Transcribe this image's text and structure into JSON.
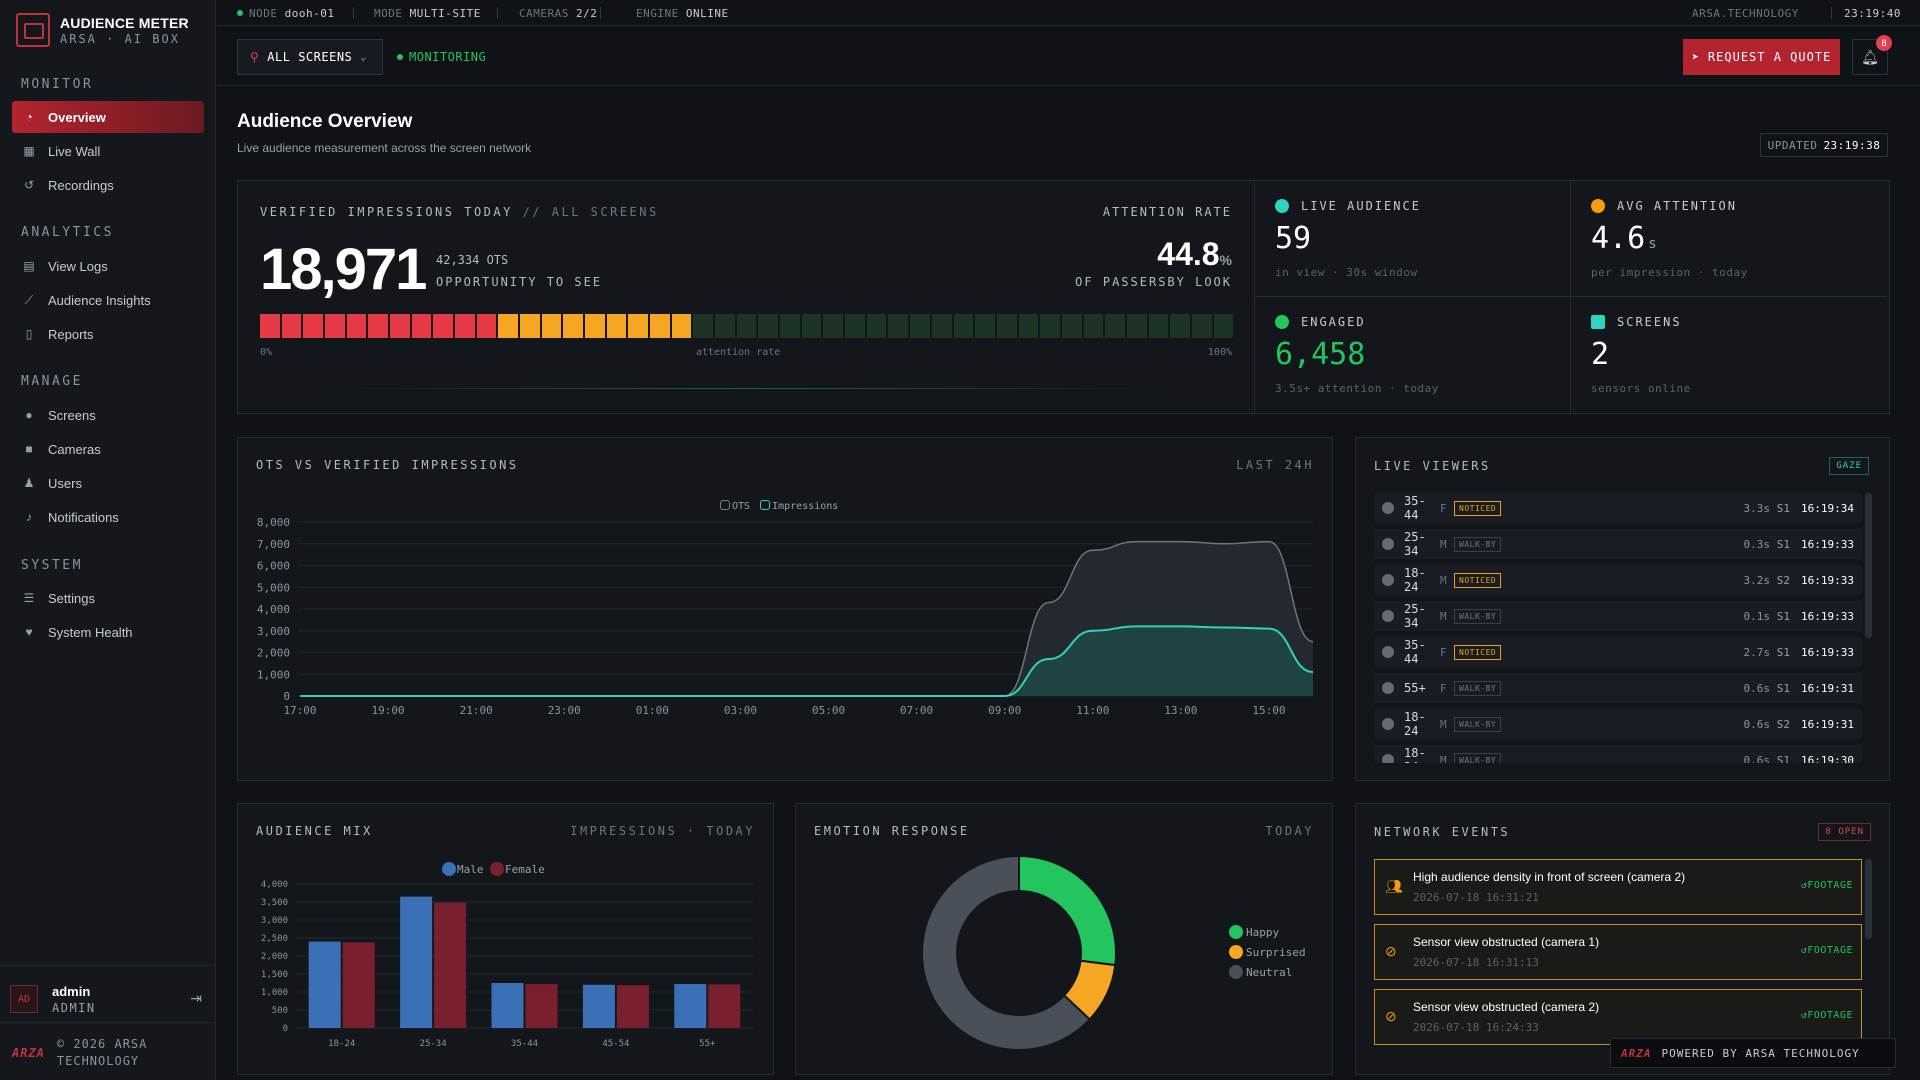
{
  "brand": {
    "title": "AUDIENCE METER",
    "subtitle": "ARSA · AI BOX"
  },
  "sidebar": {
    "sections": [
      {
        "label": "MONITOR",
        "items": [
          {
            "label": "Overview",
            "icon": "gauge-icon",
            "active": true
          },
          {
            "label": "Live Wall",
            "icon": "grid-icon"
          },
          {
            "label": "Recordings",
            "icon": "history-icon"
          }
        ]
      },
      {
        "label": "ANALYTICS",
        "items": [
          {
            "label": "View Logs",
            "icon": "table-icon"
          },
          {
            "label": "Audience Insights",
            "icon": "trend-icon"
          },
          {
            "label": "Reports",
            "icon": "document-icon"
          }
        ]
      },
      {
        "label": "MANAGE",
        "items": [
          {
            "label": "Screens",
            "icon": "pin-icon"
          },
          {
            "label": "Cameras",
            "icon": "camera-icon"
          },
          {
            "label": "Users",
            "icon": "users-icon"
          },
          {
            "label": "Notifications",
            "icon": "bell-icon"
          }
        ]
      },
      {
        "label": "SYSTEM",
        "items": [
          {
            "label": "Settings",
            "icon": "sliders-icon"
          },
          {
            "label": "System Health",
            "icon": "heart-icon"
          }
        ]
      }
    ],
    "user": {
      "avatar": "AD",
      "name": "admin",
      "role": "ADMIN"
    },
    "copyright_mark": "ARZA",
    "copyright": "© 2026 ARSA TECHNOLOGY"
  },
  "topbar": {
    "node_label": "NODE",
    "node": "dooh-01",
    "mode_label": "MODE",
    "mode": "MULTI-SITE",
    "cameras_label": "CAMERAS",
    "cameras": "2/2",
    "engine_label": "ENGINE",
    "engine": "ONLINE",
    "site": "ARSA.TECHNOLOGY",
    "clock": "23:19:40"
  },
  "toolbar": {
    "screen_select": "ALL SCREENS",
    "monitoring": "MONITORING",
    "quote": "REQUEST A QUOTE",
    "notifications_count": "8"
  },
  "page": {
    "title": "Audience Overview",
    "subtitle": "Live audience measurement across the screen network",
    "updated_label": "UPDATED",
    "updated": "23:19:38"
  },
  "impressions": {
    "title": "VERIFIED IMPRESSIONS TODAY",
    "scope": "// ALL SCREENS",
    "value": "18,971",
    "ots": "42,334 OTS",
    "ots_label": "OPPORTUNITY TO SEE",
    "attention_label": "ATTENTION RATE",
    "attention": "44.8",
    "attention_unit": "%",
    "attention_sub": "OF PASSERSBY LOOK",
    "bar_fraction": 0.448,
    "bar_min": "0%",
    "bar_mid": "attention rate",
    "bar_max": "100%"
  },
  "kpis": {
    "live": {
      "label": "LIVE AUDIENCE",
      "value": "59",
      "unit": "",
      "note": "in view · 30s window",
      "color": "#2dd4bf"
    },
    "attention": {
      "label": "AVG ATTENTION",
      "value": "4.6",
      "unit": "s",
      "note": "per impression · today",
      "color": "#f59e0b"
    },
    "engaged": {
      "label": "ENGAGED",
      "value": "6,458",
      "unit": "",
      "note": "3.5s+ attention · today",
      "color": "#22c55e"
    },
    "screens": {
      "label": "SCREENS",
      "value": "2",
      "unit": "",
      "note": "sensors online",
      "color": "#2dd4bf"
    }
  },
  "ots_chart": {
    "title": "OTS VS VERIFIED IMPRESSIONS",
    "range": "LAST 24H",
    "legend_ots": "OTS",
    "legend_impressions": "Impressions"
  },
  "live_viewers": {
    "title": "LIVE VIEWERS",
    "badge": "GAZE",
    "rows": [
      {
        "age": "35-44",
        "sex": "F",
        "tag": "NOTICED",
        "dwell": "3.3s",
        "screen": "S1",
        "time": "16:19:34"
      },
      {
        "age": "25-34",
        "sex": "M",
        "tag": "WALK-BY",
        "dwell": "0.3s",
        "screen": "S1",
        "time": "16:19:33"
      },
      {
        "age": "18-24",
        "sex": "M",
        "tag": "NOTICED",
        "dwell": "3.2s",
        "screen": "S2",
        "time": "16:19:33"
      },
      {
        "age": "25-34",
        "sex": "M",
        "tag": "WALK-BY",
        "dwell": "0.1s",
        "screen": "S1",
        "time": "16:19:33"
      },
      {
        "age": "35-44",
        "sex": "F",
        "tag": "NOTICED",
        "dwell": "2.7s",
        "screen": "S1",
        "time": "16:19:33"
      },
      {
        "age": "55+",
        "sex": "F",
        "tag": "WALK-BY",
        "dwell": "0.6s",
        "screen": "S1",
        "time": "16:19:31"
      },
      {
        "age": "18-24",
        "sex": "M",
        "tag": "WALK-BY",
        "dwell": "0.6s",
        "screen": "S2",
        "time": "16:19:31"
      },
      {
        "age": "18-24",
        "sex": "M",
        "tag": "WALK-BY",
        "dwell": "0.6s",
        "screen": "S1",
        "time": "16:19:30"
      }
    ]
  },
  "audience_mix": {
    "title": "AUDIENCE MIX",
    "range": "IMPRESSIONS · TODAY"
  },
  "emotion": {
    "title": "EMOTION RESPONSE",
    "range": "TODAY"
  },
  "events": {
    "title": "NETWORK EVENTS",
    "badge": "8 OPEN",
    "items": [
      {
        "title": "High audience density in front of screen (camera 2)",
        "time": "2026-07-18 16:31:21",
        "action": "FOOTAGE",
        "icon": "crowd-icon"
      },
      {
        "title": "Sensor view obstructed (camera 1)",
        "time": "2026-07-18 16:31:13",
        "action": "FOOTAGE",
        "icon": "eye-off-icon"
      },
      {
        "title": "Sensor view obstructed (camera 2)",
        "time": "2026-07-18 16:24:33",
        "action": "FOOTAGE",
        "icon": "eye-off-icon"
      }
    ]
  },
  "powered": {
    "mark": "ARZA",
    "text": "POWERED BY ARSA TECHNOLOGY"
  },
  "chart_data": [
    {
      "type": "area",
      "title": "OTS VS VERIFIED IMPRESSIONS",
      "x": [
        "17:00",
        "18:00",
        "19:00",
        "20:00",
        "21:00",
        "22:00",
        "23:00",
        "00:00",
        "01:00",
        "02:00",
        "03:00",
        "04:00",
        "05:00",
        "06:00",
        "07:00",
        "08:00",
        "09:00",
        "10:00",
        "11:00",
        "12:00",
        "13:00",
        "14:00",
        "15:00",
        "16:00"
      ],
      "xticks": [
        "17:00",
        "19:00",
        "21:00",
        "23:00",
        "01:00",
        "03:00",
        "05:00",
        "07:00",
        "09:00",
        "11:00",
        "13:00",
        "15:00"
      ],
      "series": [
        {
          "name": "OTS",
          "values": [
            0,
            0,
            0,
            0,
            0,
            0,
            0,
            0,
            0,
            0,
            0,
            0,
            0,
            0,
            0,
            0,
            0,
            4300,
            6700,
            7100,
            7100,
            7000,
            7100,
            2500
          ]
        },
        {
          "name": "Impressions",
          "values": [
            0,
            0,
            0,
            0,
            0,
            0,
            0,
            0,
            0,
            0,
            0,
            0,
            0,
            0,
            0,
            0,
            0,
            1700,
            3000,
            3200,
            3200,
            3150,
            3100,
            1100
          ]
        }
      ],
      "ylim": [
        0,
        8000
      ],
      "yticks": [
        "0",
        "1,000",
        "2,000",
        "3,000",
        "4,000",
        "5,000",
        "6,000",
        "7,000",
        "8,000"
      ],
      "legend": "top-center",
      "grid": true
    },
    {
      "type": "bar",
      "title": "AUDIENCE MIX",
      "categories": [
        "18-24",
        "25-34",
        "35-44",
        "45-54",
        "55+"
      ],
      "series": [
        {
          "name": "Male",
          "values": [
            2400,
            3650,
            1250,
            1200,
            1220
          ],
          "color": "#3b6fb6"
        },
        {
          "name": "Female",
          "values": [
            2380,
            3480,
            1220,
            1190,
            1210
          ],
          "color": "#7a1f2e"
        }
      ],
      "ylim": [
        0,
        4000
      ],
      "yticks": [
        "0",
        "500",
        "1,000",
        "1,500",
        "2,000",
        "2,500",
        "3,000",
        "3,500",
        "4,000"
      ],
      "legend": "top-center",
      "grid": true
    },
    {
      "type": "pie",
      "title": "EMOTION RESPONSE",
      "categories": [
        "Happy",
        "Surprised",
        "Neutral"
      ],
      "values": [
        27,
        10,
        63
      ],
      "colors": [
        "#22c55e",
        "#f5a623",
        "#4a5058"
      ],
      "legend": "right"
    }
  ]
}
